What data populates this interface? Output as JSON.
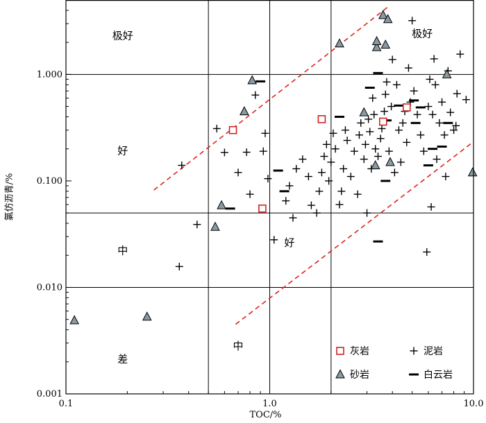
{
  "chart_data": {
    "type": "scatter",
    "xlabel": "TOC/%",
    "ylabel": "氯仿沥青/%",
    "xscale": "log",
    "yscale": "log",
    "xlim": [
      0.1,
      10.0
    ],
    "ylim": [
      0.001,
      5.0
    ],
    "x_ticks": [
      {
        "v": 0.1,
        "label": "0.1"
      },
      {
        "v": 1.0,
        "label": "1.0"
      },
      {
        "v": 10.0,
        "label": "10.0"
      }
    ],
    "y_ticks": [
      {
        "v": 0.001,
        "label": "0.001"
      },
      {
        "v": 0.01,
        "label": "0.010"
      },
      {
        "v": 0.1,
        "label": "0.100"
      },
      {
        "v": 1.0,
        "label": "1.000"
      }
    ],
    "grid_x": [
      0.5,
      1.0,
      2.0
    ],
    "grid_y": [
      0.01,
      0.05,
      1.0
    ],
    "zone_labels": [
      {
        "text": "极好",
        "x": 0.19,
        "y": 2.3
      },
      {
        "text": "好",
        "x": 0.19,
        "y": 0.19
      },
      {
        "text": "中",
        "x": 0.19,
        "y": 0.022
      },
      {
        "text": "差",
        "x": 0.19,
        "y": 0.0021
      },
      {
        "text": "极好",
        "x": 5.6,
        "y": 2.4
      },
      {
        "text": "好",
        "x": 1.25,
        "y": 0.026
      },
      {
        "text": "中",
        "x": 0.7,
        "y": 0.0028
      }
    ],
    "dashed_lines": [
      {
        "x": [
          0.27,
          3.8
        ],
        "y": [
          0.082,
          4.3
        ]
      },
      {
        "x": [
          0.68,
          9.9
        ],
        "y": [
          0.0045,
          0.23
        ]
      }
    ],
    "legend_position": "bottom-right",
    "legend": [
      {
        "name": "灰岩",
        "marker": "square"
      },
      {
        "name": "泥岩",
        "marker": "plus"
      },
      {
        "name": "砂岩",
        "marker": "triangle"
      },
      {
        "name": "白云岩",
        "marker": "dash"
      }
    ],
    "colors": {
      "limestone": "#cc2222",
      "sandstone": "#8a9aa0",
      "dashed": "#dd2222"
    },
    "series": [
      {
        "name": "灰岩",
        "marker": "square",
        "points": [
          [
            0.66,
            0.3
          ],
          [
            0.92,
            0.055
          ],
          [
            1.8,
            0.38
          ],
          [
            3.6,
            0.36
          ],
          [
            4.7,
            0.49
          ]
        ]
      },
      {
        "name": "砂岩",
        "marker": "triangle",
        "points": [
          [
            0.11,
            0.0049
          ],
          [
            0.25,
            0.0053
          ],
          [
            0.54,
            0.037
          ],
          [
            0.58,
            0.059
          ],
          [
            0.75,
            0.45
          ],
          [
            0.82,
            0.88
          ],
          [
            2.2,
            1.95
          ],
          [
            2.9,
            0.44
          ],
          [
            3.3,
            0.14
          ],
          [
            3.35,
            1.8
          ],
          [
            3.35,
            2.05
          ],
          [
            3.6,
            3.6
          ],
          [
            3.7,
            1.9
          ],
          [
            3.8,
            3.3
          ],
          [
            3.9,
            0.15
          ],
          [
            7.4,
            1.0
          ],
          [
            9.9,
            0.12
          ]
        ]
      },
      {
        "name": "白云岩",
        "marker": "dash",
        "points": [
          [
            0.64,
            0.055
          ],
          [
            0.9,
            0.86
          ],
          [
            1.1,
            0.125
          ],
          [
            1.18,
            0.08
          ],
          [
            2.2,
            0.4
          ],
          [
            3.1,
            0.75
          ],
          [
            3.4,
            1.03
          ],
          [
            3.7,
            0.1
          ],
          [
            3.75,
            0.37
          ],
          [
            3.4,
            0.027
          ],
          [
            4.3,
            0.51
          ],
          [
            5.1,
            0.57
          ],
          [
            5.2,
            0.35
          ],
          [
            5.5,
            0.49
          ],
          [
            6.0,
            0.14
          ],
          [
            6.3,
            0.2
          ],
          [
            7.0,
            0.21
          ],
          [
            7.5,
            0.35
          ]
        ]
      },
      {
        "name": "泥岩",
        "marker": "plus",
        "points": [
          [
            0.37,
            0.14
          ],
          [
            0.44,
            0.039
          ],
          [
            0.36,
            0.0157
          ],
          [
            0.55,
            0.31
          ],
          [
            0.6,
            0.185
          ],
          [
            0.7,
            0.12
          ],
          [
            0.77,
            0.186
          ],
          [
            0.8,
            0.075
          ],
          [
            0.85,
            0.64
          ],
          [
            0.93,
            0.19
          ],
          [
            0.95,
            0.28
          ],
          [
            0.98,
            0.105
          ],
          [
            1.05,
            0.028
          ],
          [
            1.2,
            0.065
          ],
          [
            1.25,
            0.09
          ],
          [
            1.3,
            0.045
          ],
          [
            1.35,
            0.13
          ],
          [
            1.45,
            0.16
          ],
          [
            1.55,
            0.11
          ],
          [
            1.6,
            0.059
          ],
          [
            1.7,
            0.05
          ],
          [
            1.75,
            0.08
          ],
          [
            1.8,
            0.12
          ],
          [
            1.85,
            0.17
          ],
          [
            1.9,
            0.22
          ],
          [
            1.95,
            0.1
          ],
          [
            2.0,
            0.15
          ],
          [
            2.05,
            0.28
          ],
          [
            2.1,
            0.2
          ],
          [
            2.2,
            0.06
          ],
          [
            2.25,
            0.08
          ],
          [
            2.3,
            0.13
          ],
          [
            2.35,
            0.3
          ],
          [
            2.4,
            0.24
          ],
          [
            2.5,
            0.11
          ],
          [
            2.6,
            0.19
          ],
          [
            2.7,
            0.075
          ],
          [
            2.75,
            0.27
          ],
          [
            2.8,
            0.35
          ],
          [
            2.9,
            0.16
          ],
          [
            2.95,
            0.22
          ],
          [
            3.0,
            0.05
          ],
          [
            3.05,
            0.38
          ],
          [
            3.1,
            0.29
          ],
          [
            3.15,
            0.13
          ],
          [
            3.2,
            0.6
          ],
          [
            3.25,
            0.42
          ],
          [
            3.3,
            0.2
          ],
          [
            3.4,
            0.17
          ],
          [
            3.5,
            0.25
          ],
          [
            3.55,
            0.31
          ],
          [
            3.65,
            0.45
          ],
          [
            3.7,
            0.65
          ],
          [
            3.75,
            0.85
          ],
          [
            3.85,
            0.19
          ],
          [
            3.95,
            0.5
          ],
          [
            4.0,
            1.38
          ],
          [
            4.1,
            0.12
          ],
          [
            4.2,
            0.8
          ],
          [
            4.3,
            0.3
          ],
          [
            4.4,
            0.15
          ],
          [
            4.5,
            0.35
          ],
          [
            4.6,
            0.45
          ],
          [
            4.7,
            0.23
          ],
          [
            4.8,
            1.15
          ],
          [
            4.9,
            0.55
          ],
          [
            5.0,
            3.2
          ],
          [
            5.1,
            0.7
          ],
          [
            5.3,
            0.42
          ],
          [
            5.5,
            0.27
          ],
          [
            5.7,
            0.19
          ],
          [
            5.9,
            0.0215
          ],
          [
            6.0,
            0.5
          ],
          [
            6.1,
            0.9
          ],
          [
            6.2,
            0.057
          ],
          [
            6.3,
            0.42
          ],
          [
            6.4,
            1.4
          ],
          [
            6.5,
            0.8
          ],
          [
            6.6,
            0.16
          ],
          [
            6.8,
            0.35
          ],
          [
            7.0,
            0.55
          ],
          [
            7.2,
            0.27
          ],
          [
            7.3,
            0.11
          ],
          [
            7.5,
            1.08
          ],
          [
            7.7,
            0.44
          ],
          [
            8.0,
            0.3
          ],
          [
            8.3,
            0.66
          ],
          [
            8.6,
            1.55
          ],
          [
            9.2,
            0.58
          ],
          [
            8.2,
            0.33
          ]
        ]
      }
    ]
  }
}
